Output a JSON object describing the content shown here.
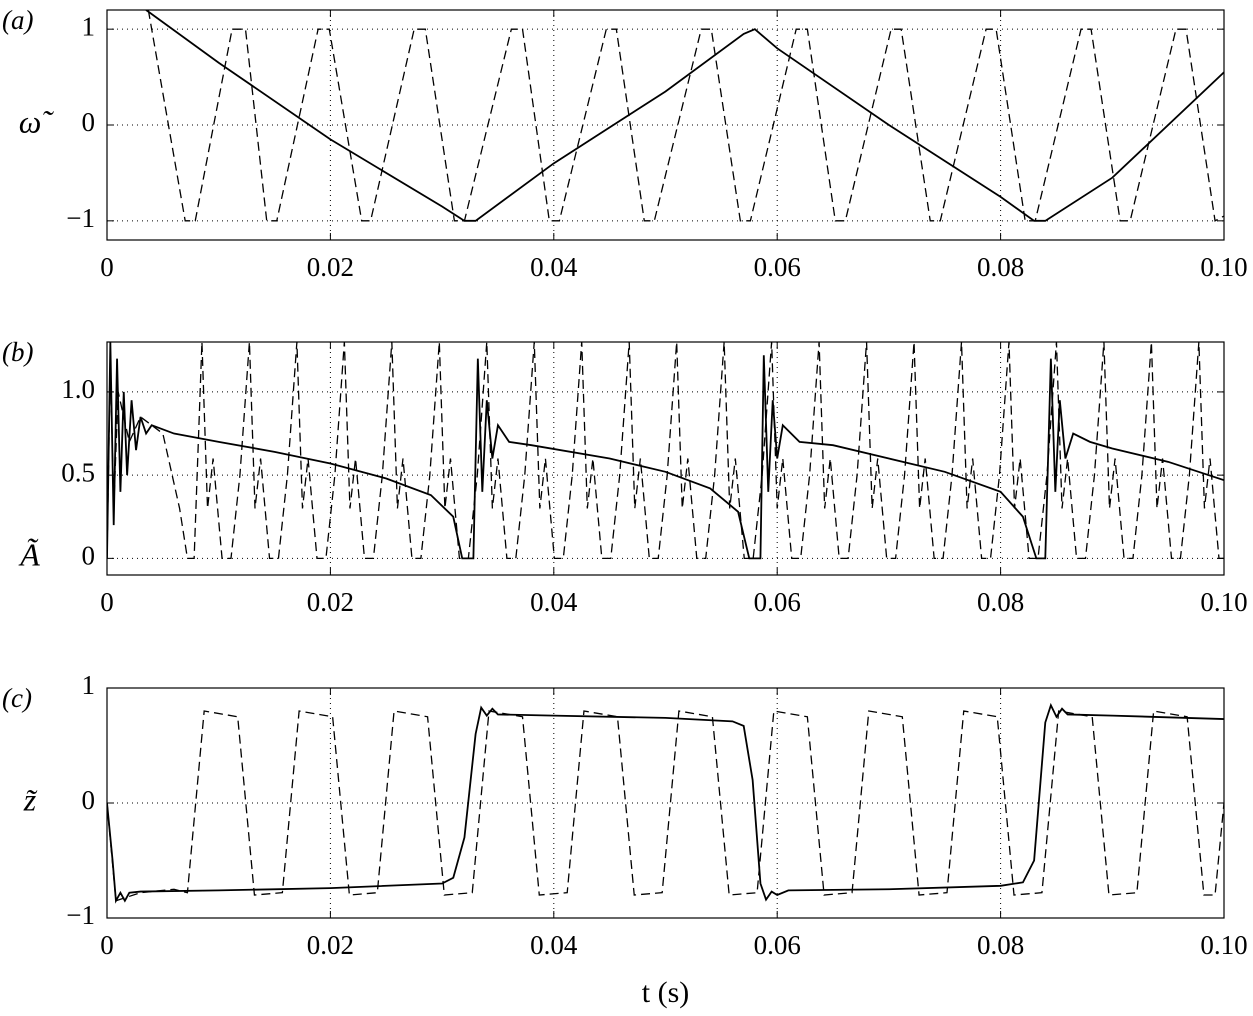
{
  "chart_data": [
    {
      "type": "line",
      "panel_label": "(a)",
      "ylabel": "ω̃",
      "grid": true,
      "xlim": [
        0,
        0.1
      ],
      "xticks": [
        0,
        0.02,
        0.04,
        0.06,
        0.08,
        {
          "value": 0.1,
          "label": "0.10"
        }
      ],
      "ylim": [
        -1.2,
        1.2
      ],
      "yticks": [
        {
          "value": -1,
          "label": "−1"
        },
        0,
        1
      ],
      "series": [
        {
          "color": "#000",
          "dash": false,
          "x": [
            0.0035,
            0.01,
            0.02,
            0.03,
            0.032,
            0.033,
            0.04,
            0.05,
            0.057,
            0.058,
            0.06,
            0.07,
            0.08,
            0.083,
            0.084,
            0.09,
            0.1
          ],
          "values": [
            1.2,
            0.65,
            -0.15,
            -0.85,
            -1,
            -1,
            -0.4,
            0.35,
            0.95,
            1,
            0.8,
            0,
            -0.75,
            -1,
            -1,
            -0.55,
            0.55
          ]
        },
        {
          "color": "#000",
          "dash": true,
          "x": [
            0.0037,
            0.007,
            0.0079,
            0.0112,
            0.0124,
            0.0143,
            0.0152,
            0.0189,
            0.0199,
            0.0228,
            0.0236,
            0.0275,
            0.0285,
            0.0311,
            0.032,
            0.0362,
            0.0372,
            0.0396,
            0.0405,
            0.0447,
            0.0456,
            0.0481,
            0.049,
            0.0532,
            0.0541,
            0.0567,
            0.0576,
            0.0617,
            0.0627,
            0.0652,
            0.0661,
            0.0702,
            0.0711,
            0.0737,
            0.0746,
            0.0787,
            0.0796,
            0.0822,
            0.0831,
            0.0872,
            0.0881,
            0.0907,
            0.0916,
            0.0957,
            0.0966,
            0.0992,
            0.1
          ],
          "values": [
            1.2,
            -1,
            -1,
            1,
            1,
            -1,
            -1,
            1,
            1,
            -1,
            -1,
            1,
            1,
            -1,
            -1,
            1,
            1,
            -1,
            -1,
            1,
            1,
            -1,
            -1,
            1,
            1,
            -1,
            -1,
            1,
            1,
            -1,
            -1,
            1,
            1,
            -1,
            -1,
            1,
            1,
            -1,
            -1,
            1,
            1,
            -1,
            -1,
            1,
            1,
            -1,
            -0.95
          ]
        }
      ]
    },
    {
      "type": "line",
      "panel_label": "(b)",
      "ylabel": "Ã",
      "grid": true,
      "xlim": [
        0,
        0.1
      ],
      "xticks": [
        0,
        0.02,
        0.04,
        0.06,
        0.08,
        {
          "value": 0.1,
          "label": "0.10"
        }
      ],
      "ylim": [
        -0.1,
        1.3
      ],
      "yticks": [
        0,
        0.5,
        {
          "value": 1,
          "label": "1.0"
        }
      ],
      "series": [
        {
          "color": "#000",
          "dash": false,
          "x": [
            0,
            0.0003,
            0.0006,
            0.0009,
            0.0012,
            0.0015,
            0.0018,
            0.0022,
            0.0026,
            0.003,
            0.0035,
            0.004,
            0.006,
            0.01,
            0.015,
            0.02,
            0.025,
            0.029,
            0.031,
            0.0318,
            0.0328,
            0.0332,
            0.0336,
            0.034,
            0.0345,
            0.035,
            0.036,
            0.038,
            0.045,
            0.05,
            0.054,
            0.0565,
            0.0575,
            0.0585,
            0.0588,
            0.0592,
            0.0596,
            0.06,
            0.0605,
            0.062,
            0.065,
            0.07,
            0.075,
            0.08,
            0.082,
            0.0832,
            0.084,
            0.0845,
            0.0849,
            0.0853,
            0.0858,
            0.0865,
            0.088,
            0.09,
            0.095,
            0.1
          ],
          "values": [
            0,
            1.3,
            0.2,
            1.2,
            0.4,
            1.0,
            0.5,
            0.95,
            0.65,
            0.85,
            0.75,
            0.8,
            0.75,
            0.7,
            0.64,
            0.57,
            0.48,
            0.38,
            0.25,
            0,
            0,
            1.2,
            0.4,
            0.95,
            0.6,
            0.8,
            0.7,
            0.68,
            0.6,
            0.52,
            0.42,
            0.28,
            0,
            0,
            1.22,
            0.4,
            0.95,
            0.6,
            0.8,
            0.7,
            0.68,
            0.6,
            0.52,
            0.4,
            0.25,
            0,
            0,
            1.2,
            0.4,
            0.95,
            0.6,
            0.75,
            0.7,
            0.66,
            0.58,
            0.47
          ]
        },
        {
          "color": "#000",
          "dash": true,
          "x": [
            0,
            0.0003,
            0.0006,
            0.001,
            0.002,
            0.003,
            0.005,
            0.0065,
            0.0072,
            0.0078,
            0.0085,
            0.009,
            0.0095,
            0.0103,
            0.0111,
            0.0119,
            0.01275,
            0.01325,
            0.01375,
            0.01455,
            0.01535,
            0.01615,
            0.017,
            0.0175,
            0.018,
            0.0188,
            0.0196,
            0.0204,
            0.02125,
            0.02175,
            0.02225,
            0.02305,
            0.02385,
            0.02465,
            0.0255,
            0.026,
            0.0265,
            0.0273,
            0.0281,
            0.0289,
            0.02975,
            0.03025,
            0.03075,
            0.03155,
            0.03235,
            0.03315,
            0.034,
            0.0345,
            0.035,
            0.0358,
            0.0366,
            0.0374,
            0.03825,
            0.03875,
            0.03925,
            0.04005,
            0.04085,
            0.04165,
            0.0425,
            0.043,
            0.0435,
            0.0443,
            0.0451,
            0.0459,
            0.04675,
            0.04725,
            0.04775,
            0.04855,
            0.04935,
            0.05015,
            0.051,
            0.0515,
            0.052,
            0.0528,
            0.0536,
            0.0544,
            0.05525,
            0.05575,
            0.05625,
            0.05705,
            0.05785,
            0.05865,
            0.0595,
            0.06,
            0.0605,
            0.0613,
            0.0621,
            0.0629,
            0.06375,
            0.06425,
            0.06475,
            0.06555,
            0.06635,
            0.06715,
            0.068,
            0.0685,
            0.069,
            0.0698,
            0.0706,
            0.0714,
            0.07225,
            0.07275,
            0.07325,
            0.07405,
            0.07485,
            0.07565,
            0.0765,
            0.077,
            0.0775,
            0.0783,
            0.0791,
            0.0799,
            0.08075,
            0.08125,
            0.08175,
            0.08255,
            0.08335,
            0.08415,
            0.085,
            0.0855,
            0.086,
            0.0868,
            0.0876,
            0.0884,
            0.08925,
            0.08975,
            0.09025,
            0.09105,
            0.09185,
            0.09265,
            0.0935,
            0.094,
            0.0945,
            0.0953,
            0.0961,
            0.0969,
            0.09775,
            0.09825,
            0.09875,
            0.09955,
            0.1
          ],
          "values": [
            0,
            1.2,
            0.3,
            1.0,
            0.7,
            0.85,
            0.75,
            0.3,
            0,
            0,
            1.3,
            0.3,
            0.6,
            0,
            0,
            0.5,
            1.3,
            0.3,
            0.6,
            0,
            0,
            0.5,
            1.3,
            0.3,
            0.6,
            0,
            0,
            0.5,
            1.3,
            0.3,
            0.6,
            0,
            0,
            0.5,
            1.3,
            0.3,
            0.6,
            0,
            0,
            0.5,
            1.3,
            0.3,
            0.6,
            0,
            0,
            0.5,
            1.3,
            0.3,
            0.6,
            0,
            0,
            0.5,
            1.3,
            0.3,
            0.6,
            0,
            0,
            0.5,
            1.3,
            0.3,
            0.6,
            0,
            0,
            0.5,
            1.3,
            0.3,
            0.6,
            0,
            0,
            0.5,
            1.3,
            0.3,
            0.6,
            0,
            0,
            0.5,
            1.3,
            0.3,
            0.6,
            0,
            0,
            0.5,
            1.3,
            0.3,
            0.6,
            0,
            0,
            0.5,
            1.3,
            0.3,
            0.6,
            0,
            0,
            0.5,
            1.3,
            0.3,
            0.6,
            0,
            0,
            0.5,
            1.3,
            0.3,
            0.6,
            0,
            0,
            0.5,
            1.3,
            0.3,
            0.6,
            0,
            0,
            0.5,
            1.3,
            0.3,
            0.6,
            0,
            0,
            0.5,
            1.3,
            0.3,
            0.6,
            0,
            0,
            0.5,
            1.3,
            0.3,
            0.6,
            0,
            0,
            0.5,
            1.3,
            0.3,
            0.6,
            0,
            0,
            0.5,
            1.3,
            0.3,
            0.6,
            0,
            0
          ]
        }
      ]
    },
    {
      "type": "line",
      "panel_label": "(c)",
      "ylabel": "z̃",
      "xlabel": "t (s)",
      "grid": true,
      "xlim": [
        0,
        0.1
      ],
      "xticks": [
        0,
        0.02,
        0.04,
        0.06,
        0.08,
        {
          "value": 0.1,
          "label": "0.10"
        }
      ],
      "ylim": [
        -1,
        1
      ],
      "yticks": [
        {
          "value": -1,
          "label": "−1"
        },
        0,
        1
      ],
      "series": [
        {
          "color": "#000",
          "dash": false,
          "x": [
            0,
            0.0005,
            0.0008,
            0.0012,
            0.0016,
            0.002,
            0.003,
            0.01,
            0.02,
            0.03,
            0.031,
            0.032,
            0.033,
            0.0335,
            0.034,
            0.0345,
            0.035,
            0.04,
            0.05,
            0.056,
            0.057,
            0.0578,
            0.0585,
            0.059,
            0.0595,
            0.06,
            0.061,
            0.07,
            0.08,
            0.082,
            0.083,
            0.084,
            0.0845,
            0.085,
            0.0855,
            0.086,
            0.09,
            0.1
          ],
          "values": [
            0,
            -0.5,
            -0.85,
            -0.78,
            -0.85,
            -0.78,
            -0.77,
            -0.76,
            -0.74,
            -0.7,
            -0.65,
            -0.3,
            0.6,
            0.83,
            0.76,
            0.82,
            0.77,
            0.76,
            0.74,
            0.71,
            0.67,
            0.2,
            -0.7,
            -0.84,
            -0.77,
            -0.8,
            -0.76,
            -0.75,
            -0.72,
            -0.69,
            -0.5,
            0.7,
            0.85,
            0.75,
            0.82,
            0.77,
            0.76,
            0.73
          ]
        },
        {
          "color": "#000",
          "dash": true,
          "x": [
            0,
            0.0008,
            0.003,
            0.006,
            0.0072,
            0.0087,
            0.0117,
            0.0132,
            0.0157,
            0.0172,
            0.0202,
            0.0217,
            0.0242,
            0.0257,
            0.0287,
            0.0302,
            0.0327,
            0.0342,
            0.0372,
            0.0387,
            0.0412,
            0.0427,
            0.0457,
            0.0472,
            0.0497,
            0.0512,
            0.0542,
            0.0557,
            0.0582,
            0.0597,
            0.0627,
            0.0642,
            0.0667,
            0.0682,
            0.0712,
            0.0727,
            0.0752,
            0.0767,
            0.0797,
            0.0812,
            0.0837,
            0.0852,
            0.0882,
            0.0897,
            0.0922,
            0.0937,
            0.0967,
            0.0982,
            0.0992,
            0.1
          ],
          "values": [
            0,
            -0.85,
            -0.78,
            -0.75,
            -0.78,
            0.8,
            0.75,
            -0.8,
            -0.78,
            0.8,
            0.75,
            -0.8,
            -0.78,
            0.8,
            0.75,
            -0.8,
            -0.78,
            0.8,
            0.75,
            -0.8,
            -0.78,
            0.8,
            0.75,
            -0.8,
            -0.78,
            0.8,
            0.75,
            -0.8,
            -0.78,
            0.8,
            0.75,
            -0.8,
            -0.78,
            0.8,
            0.75,
            -0.8,
            -0.78,
            0.8,
            0.75,
            -0.8,
            -0.78,
            0.8,
            0.75,
            -0.8,
            -0.78,
            0.8,
            0.75,
            -0.8,
            -0.8,
            0
          ]
        }
      ]
    }
  ]
}
